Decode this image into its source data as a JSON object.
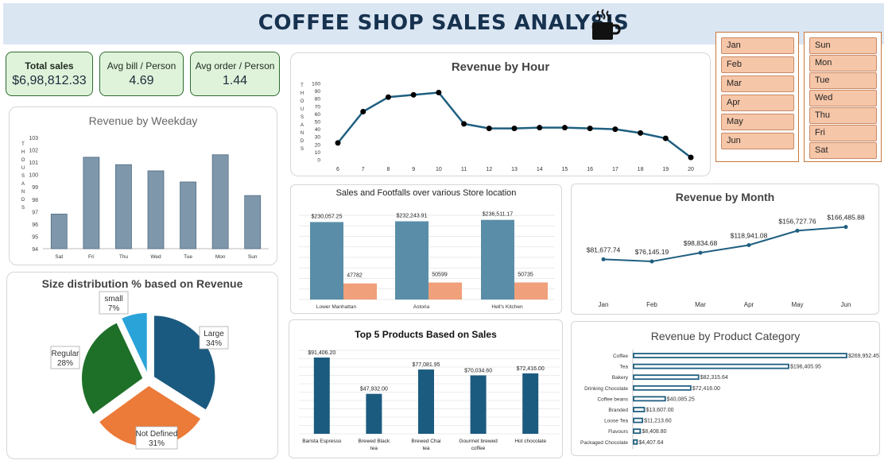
{
  "title": "COFFEE SHOP SALES ANALYSIS",
  "kpis": [
    {
      "label": "Total sales",
      "value": "$6,98,812.33"
    },
    {
      "label": "Avg bill / Person",
      "value": "4.69"
    },
    {
      "label": "Avg order / Person",
      "value": "1.44"
    }
  ],
  "slicers": {
    "months": [
      "Jan",
      "Feb",
      "Mar",
      "Apr",
      "May",
      "Jun"
    ],
    "weekdays": [
      "Sun",
      "Mon",
      "Tue",
      "Wed",
      "Thu",
      "Fri",
      "Sat"
    ]
  },
  "colors": {
    "banner": "#dbe6f3",
    "title": "#16324f",
    "teal": "#1f5f80",
    "orange": "#f0a07a",
    "slicer": "#f6c6a8"
  },
  "chart_data": [
    {
      "id": "weekday",
      "type": "bar",
      "title": "Revenue by Weekday",
      "ylabel": "THOUSANDS",
      "categories": [
        "Sat",
        "Fri",
        "Thu",
        "Wed",
        "Tue",
        "Mon",
        "Sun"
      ],
      "values": [
        96.8,
        101.4,
        100.8,
        100.3,
        99.4,
        101.6,
        98.3
      ],
      "ylim": [
        94,
        103
      ],
      "yticks": [
        "94",
        "95",
        "96",
        "97",
        "98",
        "99",
        "100",
        "101",
        "102",
        "103"
      ]
    },
    {
      "id": "hour",
      "type": "line",
      "title": "Revenue by Hour",
      "ylabel": "THOUSANDS",
      "x": [
        "6",
        "7",
        "8",
        "9",
        "10",
        "11",
        "12",
        "13",
        "14",
        "15",
        "16",
        "17",
        "18",
        "19",
        "20"
      ],
      "values": [
        22,
        63,
        82,
        85,
        88,
        47,
        41,
        41,
        42,
        42,
        41,
        40,
        35,
        28,
        3
      ],
      "ylim": [
        0,
        100
      ],
      "yticks": [
        "0",
        "10",
        "20",
        "30",
        "40",
        "50",
        "60",
        "70",
        "80",
        "90",
        "100"
      ]
    },
    {
      "id": "store",
      "type": "bar",
      "title": "Sales  and  Footfalls  over  various  Store  location",
      "categories": [
        "Lower Manhattan",
        "Astoria",
        "Hell's Kitchen"
      ],
      "series": [
        {
          "values": [
            230057.25,
            232243.91,
            236511.17
          ],
          "labels": [
            "$230,057.25",
            "$232,243.91",
            "$236,511.17"
          ]
        },
        {
          "values": [
            47782,
            50599,
            50735
          ],
          "labels": [
            "47782",
            "50599",
            "50735"
          ]
        }
      ]
    },
    {
      "id": "month",
      "type": "line",
      "title": "Revenue by Month",
      "x": [
        "Jan",
        "Feb",
        "Mar",
        "Apr",
        "May",
        "Jun"
      ],
      "values": [
        81677.74,
        76145.19,
        98834.68,
        118941.08,
        156727.76,
        166485.88
      ],
      "labels": [
        "$81,677.74",
        "$76,145.19",
        "$98,834.68",
        "$118,941.08",
        "$156,727.76",
        "$166,485.88"
      ]
    },
    {
      "id": "size",
      "type": "pie",
      "title": "Size distribution % based on Revenue",
      "slices": [
        {
          "name": "Large",
          "pct": "34%",
          "value": 34
        },
        {
          "name": "Not Defined",
          "pct": "31%",
          "value": 31
        },
        {
          "name": "Regular",
          "pct": "28%",
          "value": 28
        },
        {
          "name": "small",
          "pct": "7%",
          "value": 7
        }
      ]
    },
    {
      "id": "top5",
      "type": "bar",
      "title": "Top 5 Products Based on Sales",
      "categories": [
        "Barista Espresso",
        "Brewed Black tea",
        "Brewed Chai tea",
        "Gourmet brewed coffee",
        "Hot chocolate"
      ],
      "values": [
        91406.2,
        47932.0,
        77081.95,
        70034.6,
        72416.0
      ],
      "labels": [
        "$91,406.20",
        "$47,932.00",
        "$77,081.95",
        "$70,034.60",
        "$72,416.00"
      ]
    },
    {
      "id": "category",
      "type": "bar",
      "title": "Revenue by Product Category",
      "categories": [
        "Coffee",
        "Tea",
        "Bakery",
        "Drinking Chocolate",
        "Coffee beans",
        "Branded",
        "Loose Tea",
        "Flavours",
        "Packaged Chocolate"
      ],
      "values": [
        269952.45,
        196405.95,
        82315.64,
        72416.0,
        40085.25,
        13607.0,
        11213.6,
        8408.8,
        4407.64
      ],
      "labels": [
        "$269,952.45",
        "$196,405.95",
        "$82,315.64",
        "$72,416.00",
        "$40,085.25",
        "$13,607.00",
        "$11,213.60",
        "$8,408.80",
        "$4,407.64"
      ]
    }
  ]
}
